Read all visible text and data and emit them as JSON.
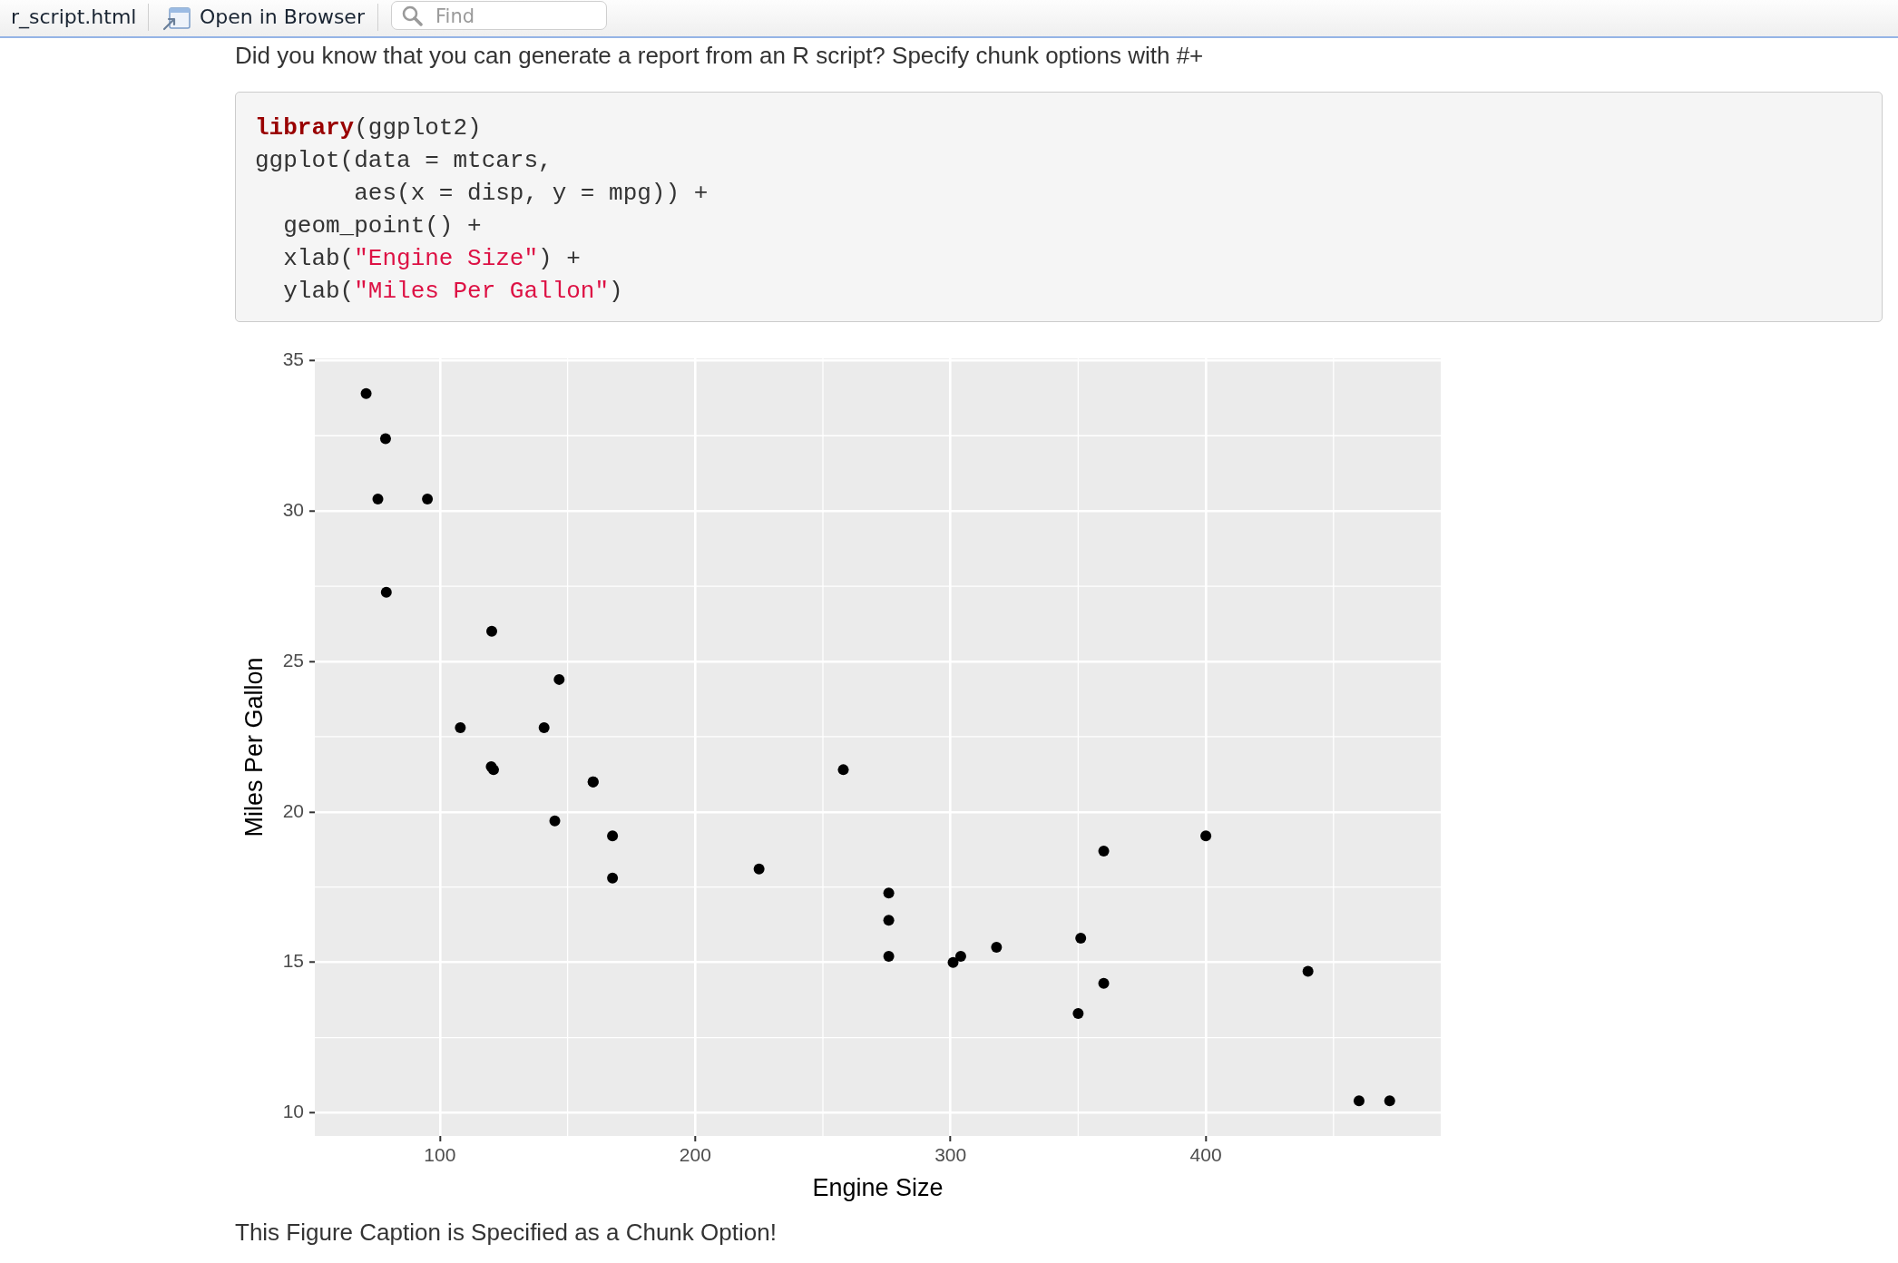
{
  "chart_data": {
    "type": "scatter",
    "xlabel": "Engine Size",
    "ylabel": "Miles Per Gallon",
    "x": [
      160,
      160,
      108,
      258,
      360,
      225,
      360,
      146.7,
      140.8,
      167.6,
      167.6,
      275.8,
      275.8,
      275.8,
      472,
      460,
      440,
      78.7,
      75.7,
      71.1,
      120.1,
      318,
      304,
      350,
      400,
      79,
      120.3,
      95.1,
      351,
      145,
      301,
      121
    ],
    "values": [
      21,
      21,
      22.8,
      21.4,
      18.7,
      18.1,
      14.3,
      24.4,
      22.8,
      19.2,
      17.8,
      16.4,
      17.3,
      15.2,
      10.4,
      10.4,
      14.7,
      32.4,
      30.4,
      33.9,
      21.5,
      15.5,
      15.2,
      13.3,
      19.2,
      27.3,
      26,
      30.4,
      15.8,
      19.7,
      15,
      21.4
    ],
    "color": "#000000",
    "marker": "circle",
    "xlim": [
      51,
      492
    ],
    "xticks": [
      100,
      200,
      300,
      400
    ],
    "ylim": [
      9.23,
      35.07
    ],
    "yticks": [
      10,
      15,
      20,
      25,
      30,
      35
    ],
    "grid": true,
    "annotations": [
      "r_script.html",
      "Open in Browser",
      "Find",
      "Did you know that you can generate a report from an R script? Specify chunk options with #+",
      "library(ggplot2)",
      "ggplot(data = mtcars,",
      "       aes(x = disp, y = mpg)) +",
      "  geom_point() +",
      "  xlab(\"Engine Size\") +",
      "  ylab(\"Miles Per Gallon\")",
      "This Figure Caption is Specified as a Chunk Option!"
    ]
  }
}
